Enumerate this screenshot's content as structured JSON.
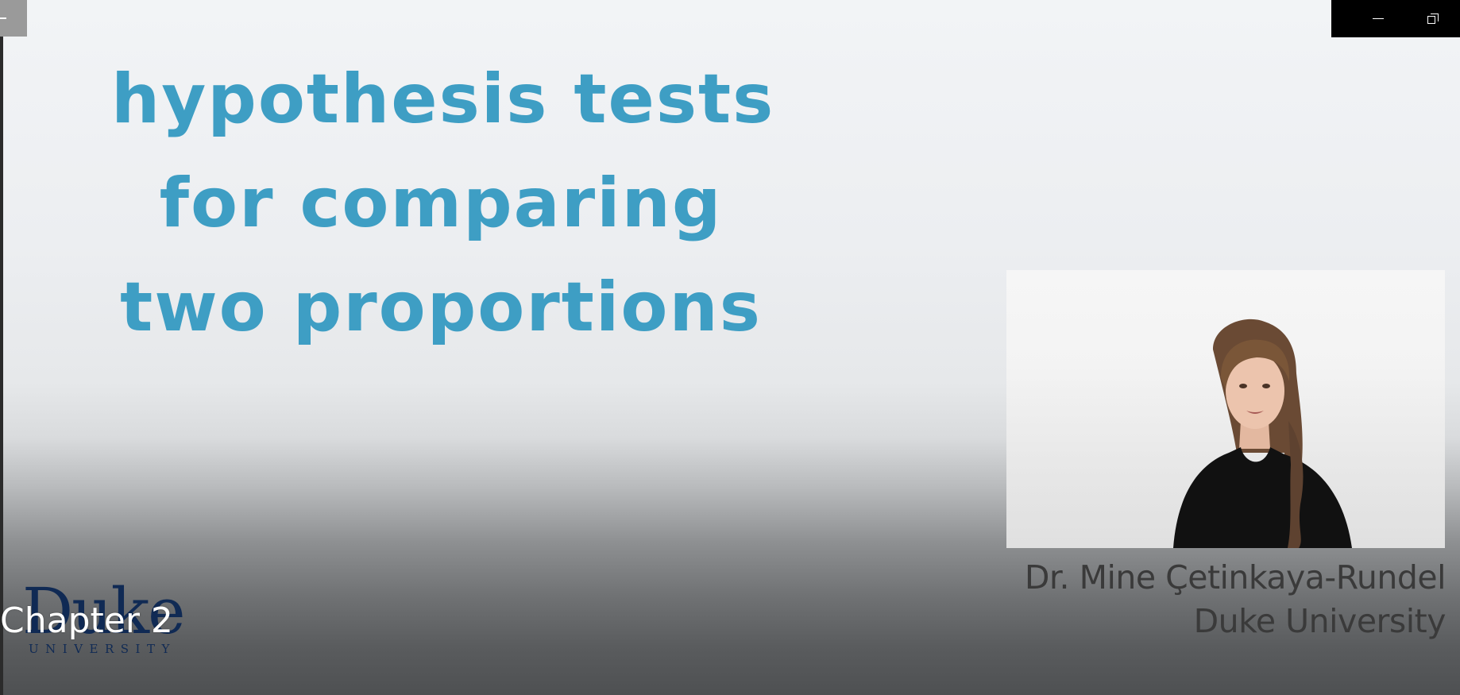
{
  "slide": {
    "title_lines": [
      "hypothesis tests",
      "for comparing",
      "two proportions"
    ],
    "title_color": "#3e9ec4"
  },
  "speaker": {
    "name": "Dr. Mine Çetinkaya-Rundel",
    "affiliation": "Duke University"
  },
  "logo": {
    "word": "Duke",
    "subtitle": "UNIVERSITY",
    "color": "#102a54"
  },
  "overlay": {
    "chapter": "Chapter 2"
  },
  "window": {
    "controls": [
      "minimize-icon",
      "restore-icon"
    ]
  }
}
